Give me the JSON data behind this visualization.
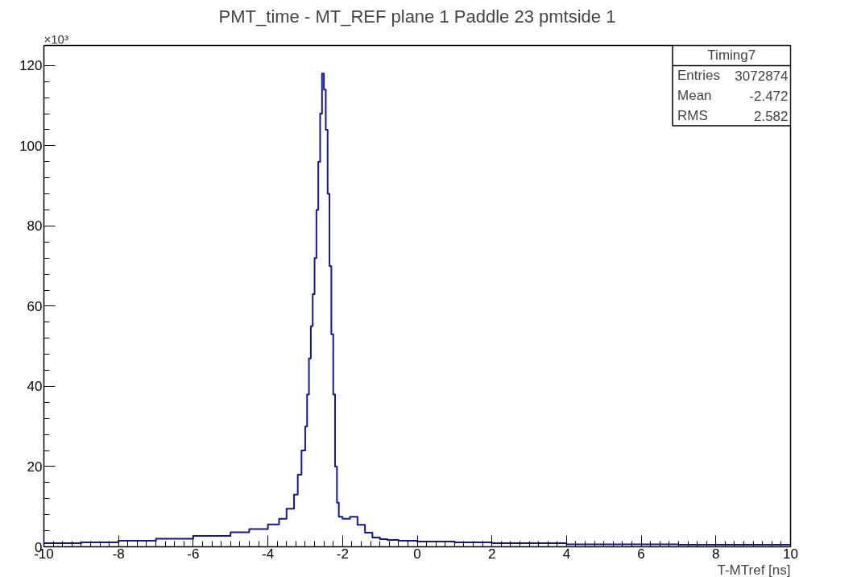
{
  "chart_data": {
    "type": "histogram",
    "title": "PMT_time - MT_REF plane 1 Paddle 23 pmtside 1",
    "xlabel": "T-MTref [ns]",
    "annotations": [
      "×10³",
      "Timing7",
      "Entries",
      "3072874",
      "Mean",
      "-2.472",
      "RMS",
      "2.582"
    ],
    "bins": [
      -10,
      -9,
      -8,
      -7,
      -6,
      -5,
      -4.5,
      -4,
      -3.7,
      -3.5,
      -3.3,
      -3.2,
      -3.1,
      -3.0,
      -2.95,
      -2.9,
      -2.85,
      -2.8,
      -2.75,
      -2.7,
      -2.65,
      -2.6,
      -2.55,
      -2.5,
      -2.45,
      -2.4,
      -2.35,
      -2.3,
      -2.25,
      -2.2,
      -2.15,
      -2.1,
      -2.0,
      -1.8,
      -1.6,
      -1.4,
      -1.2,
      -1.0,
      -0.8,
      -0.5,
      0,
      1,
      2,
      4,
      7,
      10
    ],
    "values": [
      0.9,
      1.1,
      1.5,
      2.0,
      2.7,
      3.6,
      4.4,
      5.6,
      7,
      9.5,
      13,
      18,
      24,
      30,
      38,
      47,
      55,
      63,
      72,
      84,
      96,
      108,
      118,
      114,
      104,
      88,
      70,
      53,
      38,
      20,
      11,
      7.5,
      7,
      7.5,
      5.5,
      3.5,
      2.3,
      1.9,
      1.7,
      1.5,
      1.3,
      1.1,
      0.9,
      0.6,
      0.5
    ],
    "color": "#1414a0",
    "xlim": [
      -10,
      10
    ],
    "ylim": [
      0,
      125
    ],
    "xticks": [
      -10,
      -8,
      -6,
      -4,
      -2,
      0,
      2,
      4,
      6,
      8,
      10
    ],
    "yticks": [
      0,
      20,
      40,
      60,
      80,
      100,
      120
    ],
    "grid": false
  }
}
